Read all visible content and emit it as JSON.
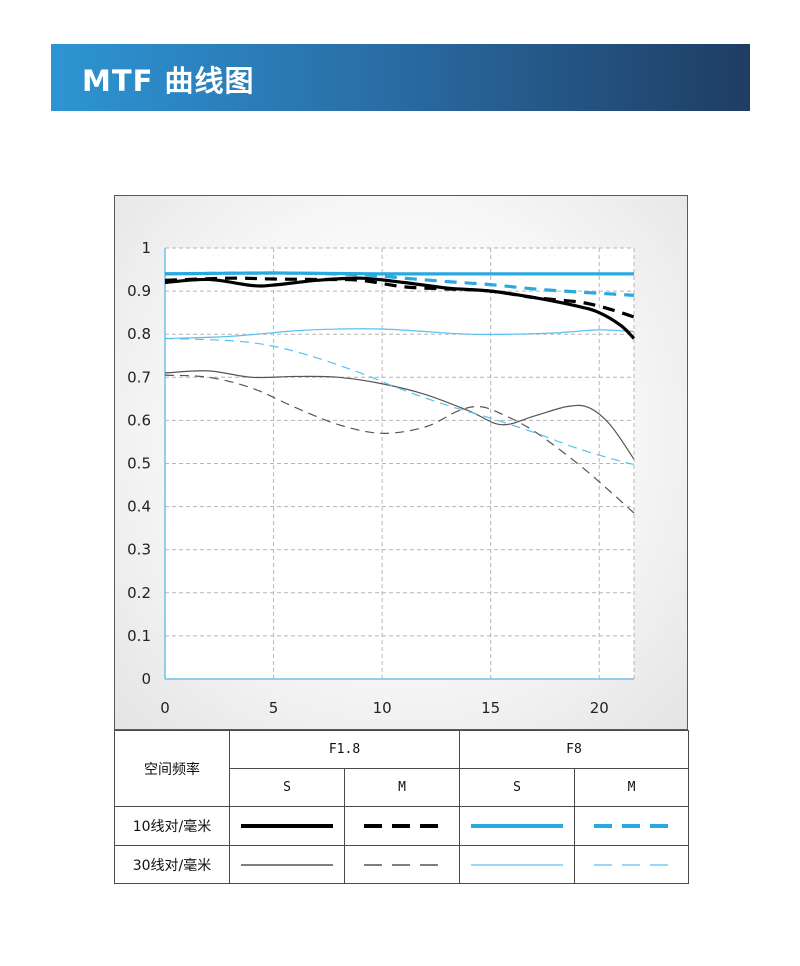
{
  "header": {
    "title": "MTF 曲线图"
  },
  "chart_data": {
    "type": "line",
    "title": "MTF 曲线图",
    "xlim": [
      0,
      21.6
    ],
    "ylim": [
      0,
      1
    ],
    "x_ticks": [
      "0",
      "5",
      "10",
      "15",
      "20"
    ],
    "y_ticks": [
      "0",
      "0.1",
      "0.2",
      "0.3",
      "0.4",
      "0.5",
      "0.6",
      "0.7",
      "0.8",
      "0.9",
      "1"
    ],
    "grid": true,
    "series": [
      {
        "name": "F1.8 S 10线对/毫米",
        "color": "#000000",
        "style": "solid",
        "weight": "bold",
        "points": [
          [
            0,
            0.92
          ],
          [
            2,
            0.927
          ],
          [
            4,
            0.913
          ],
          [
            5,
            0.914
          ],
          [
            7,
            0.925
          ],
          [
            9,
            0.93
          ],
          [
            11,
            0.92
          ],
          [
            13,
            0.907
          ],
          [
            15,
            0.9
          ],
          [
            17,
            0.885
          ],
          [
            19,
            0.865
          ],
          [
            20,
            0.85
          ],
          [
            21,
            0.82
          ],
          [
            21.6,
            0.79
          ]
        ]
      },
      {
        "name": "F1.8 M 10线对/毫米",
        "color": "#000000",
        "style": "dashed",
        "weight": "bold",
        "points": [
          [
            0,
            0.925
          ],
          [
            3,
            0.93
          ],
          [
            5,
            0.928
          ],
          [
            7,
            0.927
          ],
          [
            9,
            0.925
          ],
          [
            11,
            0.91
          ],
          [
            13,
            0.905
          ],
          [
            15,
            0.9
          ],
          [
            17,
            0.885
          ],
          [
            19,
            0.875
          ],
          [
            20,
            0.865
          ],
          [
            21,
            0.85
          ],
          [
            21.6,
            0.84
          ]
        ]
      },
      {
        "name": "F8 S 10线对/毫米",
        "color": "#29a9e1",
        "style": "solid",
        "weight": "bold",
        "points": [
          [
            0,
            0.94
          ],
          [
            5,
            0.942
          ],
          [
            10,
            0.94
          ],
          [
            15,
            0.94
          ],
          [
            20,
            0.94
          ],
          [
            21.6,
            0.94
          ]
        ]
      },
      {
        "name": "F8 M 10线对/毫米",
        "color": "#29a9e1",
        "style": "dashed",
        "weight": "bold",
        "points": [
          [
            0,
            0.94
          ],
          [
            5,
            0.942
          ],
          [
            9,
            0.938
          ],
          [
            11,
            0.93
          ],
          [
            13,
            0.922
          ],
          [
            15,
            0.915
          ],
          [
            17,
            0.905
          ],
          [
            19,
            0.898
          ],
          [
            21,
            0.892
          ],
          [
            21.6,
            0.89
          ]
        ]
      },
      {
        "name": "F1.8 S 30线对/毫米",
        "color": "#555555",
        "style": "solid",
        "weight": "thin",
        "points": [
          [
            0,
            0.71
          ],
          [
            2,
            0.715
          ],
          [
            4,
            0.7
          ],
          [
            6,
            0.702
          ],
          [
            8,
            0.7
          ],
          [
            10,
            0.685
          ],
          [
            12,
            0.66
          ],
          [
            14,
            0.622
          ],
          [
            15.5,
            0.59
          ],
          [
            17,
            0.61
          ],
          [
            18.5,
            0.632
          ],
          [
            19.5,
            0.63
          ],
          [
            20.5,
            0.59
          ],
          [
            21.6,
            0.51
          ]
        ]
      },
      {
        "name": "F1.8 M 30线对/毫米",
        "color": "#555555",
        "style": "dashed",
        "weight": "thin",
        "points": [
          [
            0,
            0.705
          ],
          [
            2,
            0.7
          ],
          [
            4,
            0.675
          ],
          [
            6,
            0.63
          ],
          [
            8,
            0.59
          ],
          [
            10,
            0.57
          ],
          [
            12,
            0.585
          ],
          [
            13.5,
            0.622
          ],
          [
            14.5,
            0.632
          ],
          [
            15.5,
            0.615
          ],
          [
            17,
            0.575
          ],
          [
            19,
            0.5
          ],
          [
            20.5,
            0.435
          ],
          [
            21.6,
            0.385
          ]
        ]
      },
      {
        "name": "F8 S 30线对/毫米",
        "color": "#5bc0ee",
        "style": "solid",
        "weight": "thin",
        "points": [
          [
            0,
            0.79
          ],
          [
            3,
            0.795
          ],
          [
            6,
            0.808
          ],
          [
            8,
            0.812
          ],
          [
            10,
            0.812
          ],
          [
            12,
            0.806
          ],
          [
            14,
            0.8
          ],
          [
            16,
            0.8
          ],
          [
            18,
            0.803
          ],
          [
            20,
            0.81
          ],
          [
            21.6,
            0.806
          ]
        ]
      },
      {
        "name": "F8 M 30线对/毫米",
        "color": "#5bc0ee",
        "style": "dashed",
        "weight": "thin",
        "points": [
          [
            0,
            0.79
          ],
          [
            3,
            0.785
          ],
          [
            5,
            0.772
          ],
          [
            7,
            0.745
          ],
          [
            9,
            0.71
          ],
          [
            11,
            0.67
          ],
          [
            13,
            0.635
          ],
          [
            15,
            0.605
          ],
          [
            17,
            0.572
          ],
          [
            19,
            0.535
          ],
          [
            21,
            0.505
          ],
          [
            21.6,
            0.498
          ]
        ]
      }
    ]
  },
  "legend_table": {
    "corner_label": "空间频率",
    "aperture_1": "F1.8",
    "aperture_2": "F8",
    "col_s_1": "S",
    "col_m_1": "M",
    "col_s_2": "S",
    "col_m_2": "M",
    "row_10": "10线对/毫米",
    "row_30": "30线对/毫米"
  }
}
